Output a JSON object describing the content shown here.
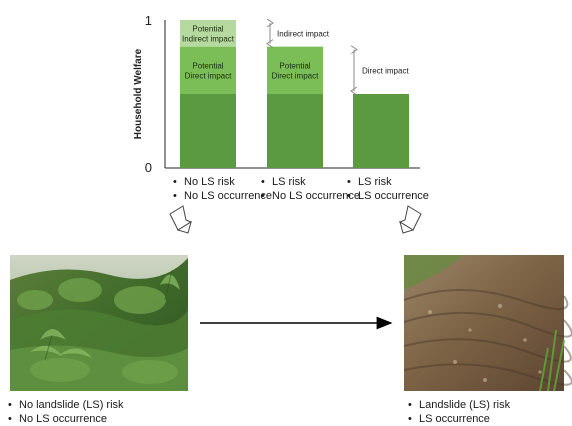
{
  "chart_data": {
    "type": "bar",
    "ylabel": "Household Welfare",
    "ytick_labels": [
      "0",
      "1"
    ],
    "ylim": [
      0,
      1
    ],
    "categories": [
      [
        "No LS risk",
        "No LS occurrence"
      ],
      [
        "LS risk",
        "No LS occurrence"
      ],
      [
        "LS risk",
        "LS occurrence"
      ]
    ],
    "bars": [
      {
        "segments": [
          {
            "from": 0,
            "to": 0.5,
            "label": [],
            "color": "#5b9a41"
          },
          {
            "from": 0.5,
            "to": 0.82,
            "label": [
              "Potential",
              "Direct impact"
            ],
            "color": "#7bbd57"
          },
          {
            "from": 0.82,
            "to": 1.0,
            "label": [
              "Potential",
              "Indirect impact"
            ],
            "color": "#b6d9a0"
          }
        ]
      },
      {
        "segments": [
          {
            "from": 0,
            "to": 0.5,
            "label": [],
            "color": "#5b9a41"
          },
          {
            "from": 0.5,
            "to": 0.82,
            "label": [
              "Potential",
              "Direct impact"
            ],
            "color": "#7bbd57"
          }
        ]
      },
      {
        "segments": [
          {
            "from": 0,
            "to": 0.5,
            "label": [],
            "color": "#5b9a41"
          }
        ]
      }
    ],
    "annotations": [
      {
        "label": "Indirect impact",
        "from": 0.82,
        "to": 1.0
      },
      {
        "label": "Direct impact",
        "from": 0.5,
        "to": 0.82
      }
    ]
  },
  "left_photo": {
    "caption": [
      "No landslide (LS) risk",
      "No LS occurrence"
    ]
  },
  "right_photo": {
    "caption": [
      "Landslide (LS) risk",
      "LS occurrence"
    ]
  }
}
